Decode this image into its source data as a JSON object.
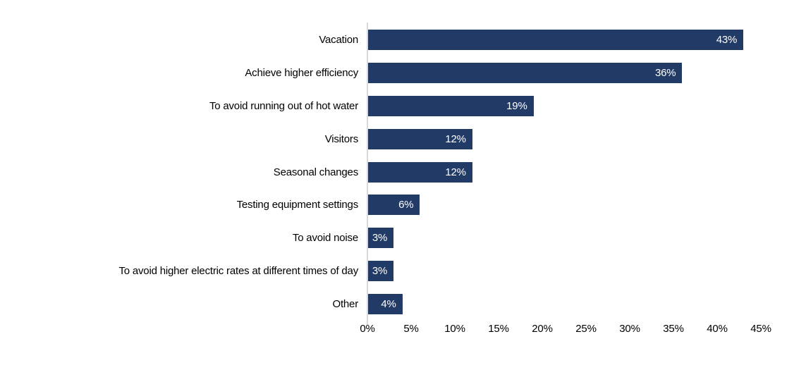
{
  "chart_data": {
    "type": "bar",
    "orientation": "horizontal",
    "title": "",
    "xlabel": "",
    "ylabel": "",
    "categories": [
      "Vacation",
      "Achieve higher efficiency",
      "To avoid running out of hot water",
      "Visitors",
      "Seasonal changes",
      "Testing equipment settings",
      "To avoid noise",
      "To avoid higher electric rates at different times of day",
      "Other"
    ],
    "values": [
      43,
      36,
      19,
      12,
      12,
      6,
      3,
      3,
      4
    ],
    "value_labels": [
      "43%",
      "36%",
      "19%",
      "12%",
      "12%",
      "6%",
      "3%",
      "3%",
      "4%"
    ],
    "xlim": [
      0,
      45
    ],
    "x_tick_values": [
      0,
      5,
      10,
      15,
      20,
      25,
      30,
      35,
      40,
      45
    ],
    "x_tick_labels": [
      "0%",
      "5%",
      "10%",
      "15%",
      "20%",
      "25%",
      "30%",
      "35%",
      "40%",
      "45%"
    ],
    "grid": false,
    "legend": false,
    "colors": {
      "bar": "#213A66",
      "category_label": "#000000",
      "value_label": "#FFFFFF",
      "axis_line": "#D9D9D9",
      "tick_label": "#000000",
      "background": "#FFFFFF"
    }
  }
}
